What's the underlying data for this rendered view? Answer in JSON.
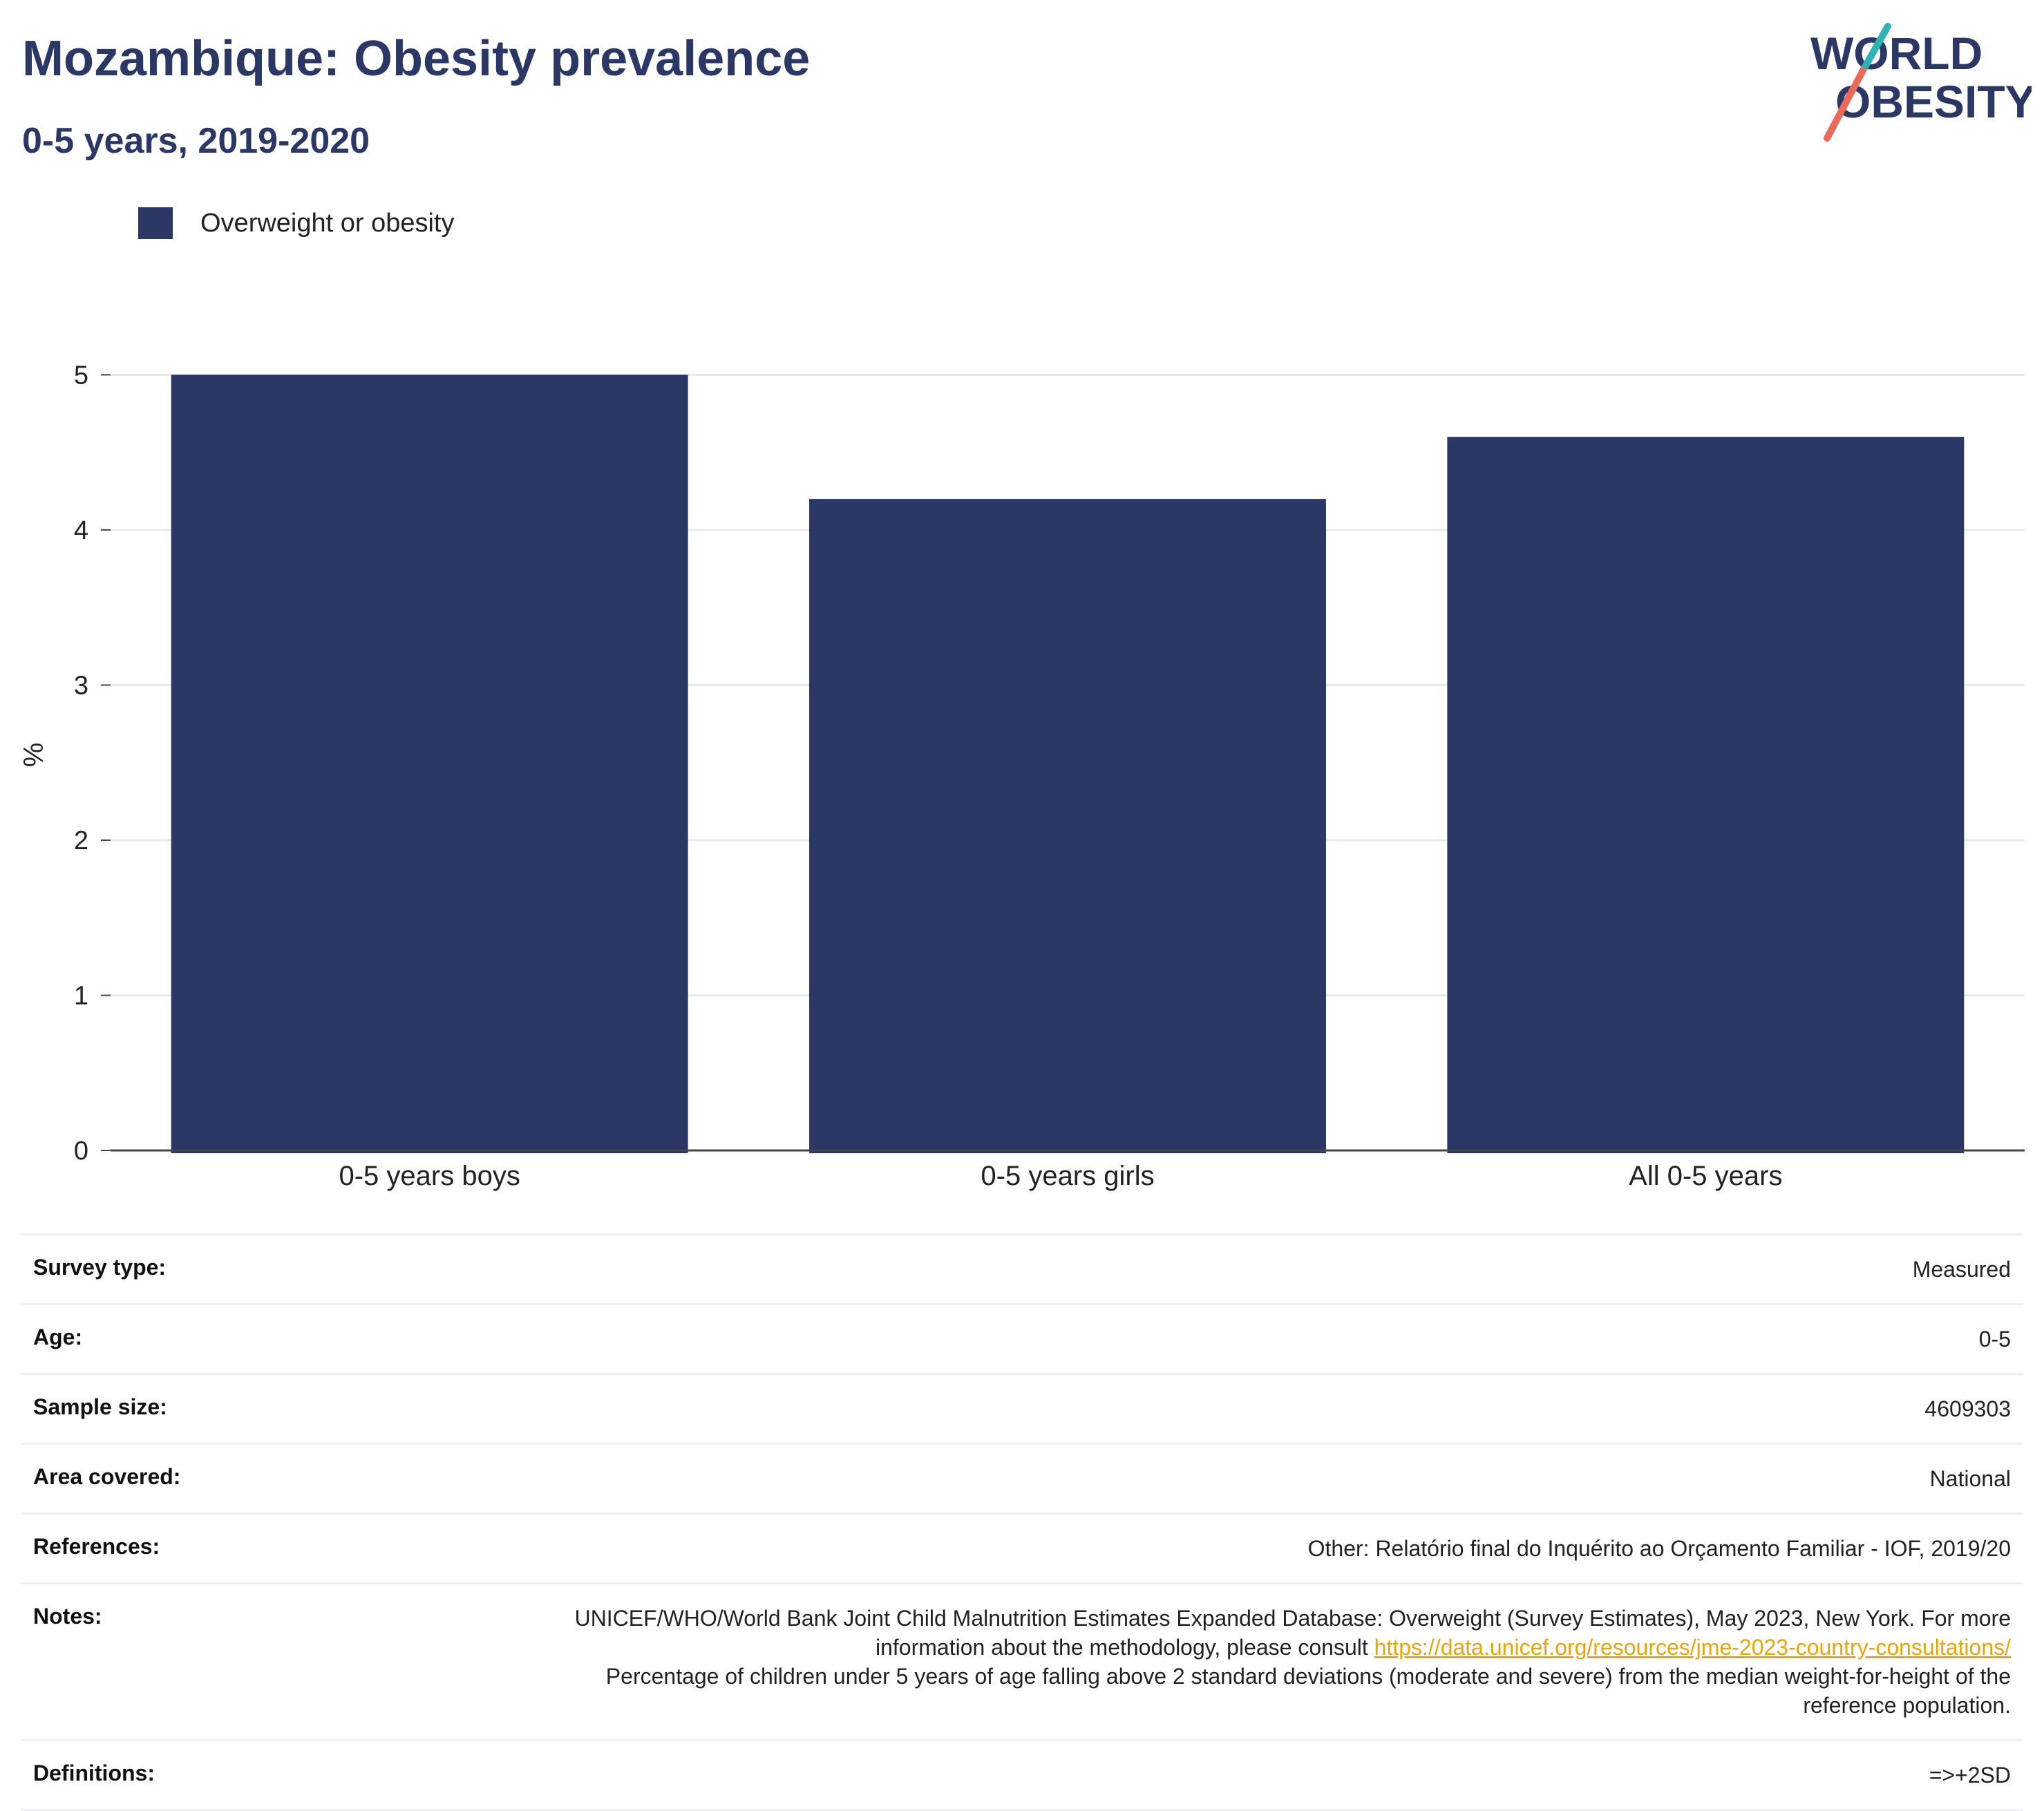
{
  "header": {
    "title": "Mozambique: Obesity prevalence",
    "subtitle": "0-5 years, 2019-2020",
    "logo_line1": "WORLD",
    "logo_line2": "OBESITY"
  },
  "colors": {
    "bar": "#2b3765",
    "title": "#2b3765",
    "link": "#e8a50b",
    "logo_teal": "#2fb3b3",
    "logo_coral": "#ea6a5a"
  },
  "chart_data": {
    "type": "bar",
    "categories": [
      "0-5 years boys",
      "0-5 years girls",
      "All 0-5 years"
    ],
    "series": [
      {
        "name": "Overweight or obesity",
        "values": [
          5.0,
          4.2,
          4.6
        ]
      }
    ],
    "ylabel": "%",
    "xlabel": "",
    "ylim": [
      0,
      5.1
    ],
    "yticks": [
      0,
      1,
      2,
      3,
      4,
      5
    ],
    "grid": true,
    "legend": "top-left"
  },
  "info": {
    "survey_type": {
      "label": "Survey type:",
      "value": "Measured"
    },
    "age": {
      "label": "Age:",
      "value": "0-5"
    },
    "sample_size": {
      "label": "Sample size:",
      "value": "4609303"
    },
    "area": {
      "label": "Area covered:",
      "value": "National"
    },
    "references": {
      "label": "References:",
      "value": "Other: Relatório final do Inquérito ao Orçamento Familiar - IOF, 2019/20"
    },
    "notes": {
      "label": "Notes:",
      "text1": "UNICEF/WHO/World Bank Joint Child Malnutrition Estimates Expanded Database: Overweight (Survey Estimates), May 2023, New York. For more information about the methodology, please consult ",
      "link": "https://data.unicef.org/resources/jme-2023-country-consultations/",
      "text2": "Percentage of children under 5 years of age falling above 2 standard deviations (moderate and severe) from the median weight-for-height of the reference population."
    },
    "definitions": {
      "label": "Definitions:",
      "value": "=>+2SD"
    }
  }
}
